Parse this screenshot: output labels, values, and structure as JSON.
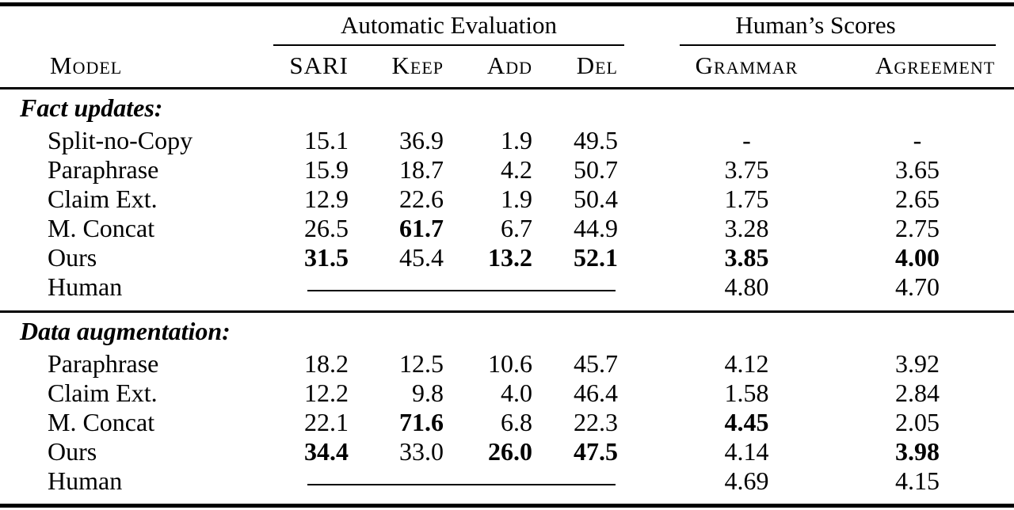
{
  "colors": {
    "text": "#000000",
    "background": "#ffffff",
    "rule": "#000000"
  },
  "table": {
    "model_header": "Model",
    "groups": [
      {
        "label": "Automatic Evaluation",
        "columns": [
          "SARI",
          "Keep",
          "Add",
          "Del"
        ]
      },
      {
        "label": "Human’s Scores",
        "columns": [
          "Grammar",
          "Agreement"
        ]
      }
    ],
    "sections": [
      {
        "label": "Fact updates:",
        "rows": [
          {
            "model": "Split-no-Copy",
            "sari": "15.1",
            "keep": "36.9",
            "add": "1.9",
            "del": "49.5",
            "grammar": "-",
            "agreement": "-",
            "bold": []
          },
          {
            "model": "Paraphrase",
            "sari": "15.9",
            "keep": "18.7",
            "add": "4.2",
            "del": "50.7",
            "grammar": "3.75",
            "agreement": "3.65",
            "bold": []
          },
          {
            "model": "Claim Ext.",
            "sari": "12.9",
            "keep": "22.6",
            "add": "1.9",
            "del": "50.4",
            "grammar": "1.75",
            "agreement": "2.65",
            "bold": []
          },
          {
            "model": "M. Concat",
            "sari": "26.5",
            "keep": "61.7",
            "add": "6.7",
            "del": "44.9",
            "grammar": "3.28",
            "agreement": "2.75",
            "bold": [
              "keep"
            ]
          },
          {
            "model": "Ours",
            "sari": "31.5",
            "keep": "45.4",
            "add": "13.2",
            "del": "52.1",
            "grammar": "3.85",
            "agreement": "4.00",
            "bold": [
              "sari",
              "add",
              "del",
              "grammar",
              "agreement"
            ]
          },
          {
            "model": "Human",
            "line_span_auto": true,
            "grammar": "4.80",
            "agreement": "4.70",
            "bold": []
          }
        ]
      },
      {
        "label": "Data augmentation:",
        "rows": [
          {
            "model": "Paraphrase",
            "sari": "18.2",
            "keep": "12.5",
            "add": "10.6",
            "del": "45.7",
            "grammar": "4.12",
            "agreement": "3.92",
            "bold": []
          },
          {
            "model": "Claim Ext.",
            "sari": "12.2",
            "keep": "9.8",
            "add": "4.0",
            "del": "46.4",
            "grammar": "1.58",
            "agreement": "2.84",
            "bold": []
          },
          {
            "model": "M. Concat",
            "sari": "22.1",
            "keep": "71.6",
            "add": "6.8",
            "del": "22.3",
            "grammar": "4.45",
            "agreement": "2.05",
            "bold": [
              "keep",
              "grammar"
            ]
          },
          {
            "model": "Ours",
            "sari": "34.4",
            "keep": "33.0",
            "add": "26.0",
            "del": "47.5",
            "grammar": "4.14",
            "agreement": "3.98",
            "bold": [
              "sari",
              "add",
              "del",
              "agreement"
            ]
          },
          {
            "model": "Human",
            "line_span_auto": true,
            "grammar": "4.69",
            "agreement": "4.15",
            "bold": []
          }
        ]
      }
    ]
  }
}
